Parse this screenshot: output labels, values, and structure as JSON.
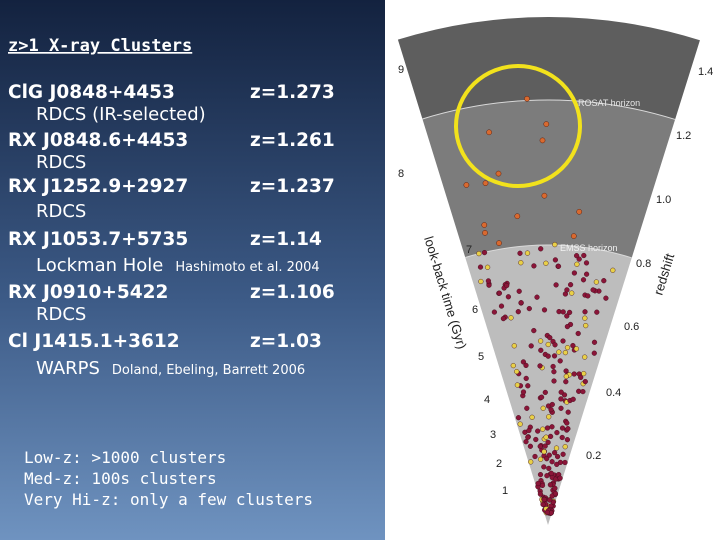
{
  "title": "z>1 X-ray Clusters",
  "clusters": [
    {
      "name": "ClG J0848+4453",
      "redshift": "z=1.273",
      "survey": "RDCS (IR-selected)"
    },
    {
      "name": "RX J0848.6+4453",
      "redshift": "z=1.261",
      "survey": "RDCS"
    },
    {
      "name": "RX J1252.9+2927",
      "redshift": "z=1.237",
      "survey": "RDCS"
    },
    {
      "name": "RX J1053.7+5735",
      "redshift": "z=1.14",
      "survey": "Lockman Hole",
      "reference": "Hashimoto et al. 2004"
    },
    {
      "name": "RX J0910+5422",
      "redshift": "z=1.106",
      "survey": "RDCS"
    },
    {
      "name": "Cl J1415.1+3612",
      "redshift": "z=1.03",
      "survey": "WARPS",
      "reference": "Doland, Ebeling, Barrett 2006"
    }
  ],
  "notes": [
    "Low-z: >1000 clusters",
    "Med-z: 100s clusters",
    "Very Hi-z: only a few clusters"
  ],
  "figure": {
    "lookback_axis_label": "look-back time (Gyr)",
    "lookback_ticks": [
      "1",
      "2",
      "3",
      "4",
      "5",
      "6",
      "7",
      "8",
      "9"
    ],
    "redshift_axis_label": "redshift",
    "redshift_ticks": [
      "0.2",
      "0.4",
      "0.6",
      "0.8",
      "1.0",
      "1.2",
      "1.4"
    ],
    "horizons": [
      "ROSAT horizon",
      "EMSS horizon"
    ]
  }
}
